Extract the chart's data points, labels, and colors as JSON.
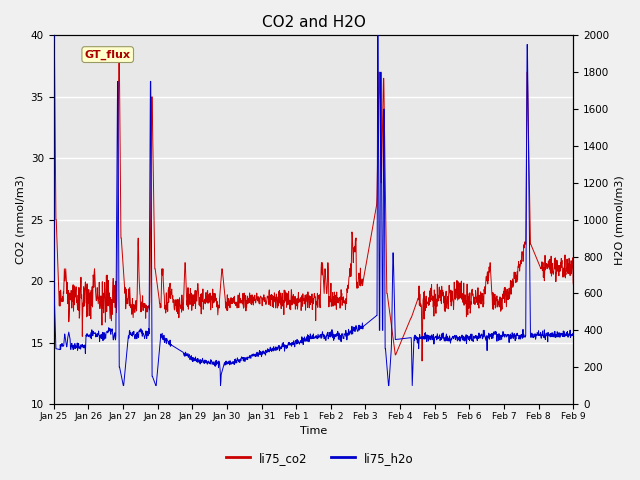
{
  "title": "CO2 and H2O",
  "xlabel": "Time",
  "ylabel_left": "CO2 (mmol/m3)",
  "ylabel_right": "H2O (mmol/m3)",
  "ylim_left": [
    10,
    40
  ],
  "ylim_right": [
    0,
    2000
  ],
  "yticks_left": [
    10,
    15,
    20,
    25,
    30,
    35,
    40
  ],
  "yticks_right": [
    0,
    200,
    400,
    600,
    800,
    1000,
    1200,
    1400,
    1600,
    1800,
    2000
  ],
  "xtick_labels": [
    "Jan 25",
    "Jan 26",
    "Jan 27",
    "Jan 28",
    "Jan 29",
    "Jan 30",
    "Jan 31",
    "Feb 1",
    "Feb 2",
    "Feb 3",
    "Feb 4",
    "Feb 5",
    "Feb 6",
    "Feb 7",
    "Feb 8",
    "Feb 9"
  ],
  "color_co2": "#cc0000",
  "color_h2o": "#0000cc",
  "legend_label_co2": "li75_co2",
  "legend_label_h2o": "li75_h2o",
  "annotation_text": "GT_flux",
  "annotation_bbox_facecolor": "#ffffcc",
  "annotation_bbox_edgecolor": "#999966",
  "background_color": "#f0f0f0",
  "panel_color": "#e8e8e8",
  "grid_color": "#ffffff",
  "title_fontsize": 11,
  "n_days": 16,
  "n_per_day": 96
}
